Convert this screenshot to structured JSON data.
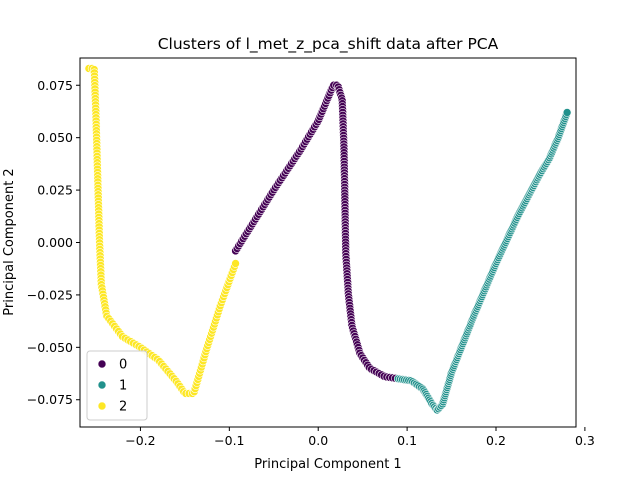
{
  "chart_data": {
    "type": "scatter",
    "title": "Clusters of l_met_z_pca_shift data after PCA",
    "xlabel": "Principal Component 1",
    "ylabel": "Principal Component 2",
    "xlim": [
      -0.268,
      0.29
    ],
    "ylim": [
      -0.088,
      0.088
    ],
    "xticks": [
      -0.2,
      -0.1,
      0.0,
      0.1,
      0.2,
      0.3
    ],
    "xtick_labels": [
      "−0.2",
      "−0.1",
      "0.0",
      "0.1",
      "0.2",
      "0.3"
    ],
    "yticks": [
      -0.075,
      -0.05,
      -0.025,
      0.0,
      0.025,
      0.05,
      0.075
    ],
    "ytick_labels": [
      "−0.075",
      "−0.050",
      "−0.025",
      "0.000",
      "0.025",
      "0.050",
      "0.075"
    ],
    "grid": false,
    "legend_position": "lower-left",
    "marker_edge_color": "#ffffff",
    "series": [
      {
        "name": "0",
        "color": "#440154",
        "path": [
          [
            -0.093,
            -0.004
          ],
          [
            -0.05,
            0.025
          ],
          [
            -0.02,
            0.044
          ],
          [
            0.0,
            0.058
          ],
          [
            0.012,
            0.07
          ],
          [
            0.017,
            0.075
          ],
          [
            0.022,
            0.075
          ],
          [
            0.027,
            0.068
          ],
          [
            0.029,
            0.045
          ],
          [
            0.03,
            0.02
          ],
          [
            0.031,
            -0.005
          ],
          [
            0.034,
            -0.025
          ],
          [
            0.038,
            -0.04
          ],
          [
            0.047,
            -0.053
          ],
          [
            0.058,
            -0.06
          ],
          [
            0.075,
            -0.064
          ],
          [
            0.09,
            -0.065
          ]
        ],
        "count": 180
      },
      {
        "name": "1",
        "color": "#21918c",
        "path": [
          [
            0.09,
            -0.065
          ],
          [
            0.105,
            -0.066
          ],
          [
            0.118,
            -0.07
          ],
          [
            0.128,
            -0.077
          ],
          [
            0.134,
            -0.08
          ],
          [
            0.14,
            -0.077
          ],
          [
            0.15,
            -0.062
          ],
          [
            0.175,
            -0.035
          ],
          [
            0.2,
            -0.01
          ],
          [
            0.225,
            0.013
          ],
          [
            0.25,
            0.033
          ],
          [
            0.26,
            0.04
          ],
          [
            0.27,
            0.05
          ],
          [
            0.28,
            0.062
          ]
        ],
        "count": 180
      },
      {
        "name": "2",
        "color": "#fde725",
        "path": [
          [
            -0.258,
            0.083
          ],
          [
            -0.252,
            0.083
          ],
          [
            -0.25,
            0.06
          ],
          [
            -0.248,
            0.03
          ],
          [
            -0.246,
            0.0
          ],
          [
            -0.244,
            -0.02
          ],
          [
            -0.238,
            -0.035
          ],
          [
            -0.22,
            -0.045
          ],
          [
            -0.2,
            -0.05
          ],
          [
            -0.18,
            -0.056
          ],
          [
            -0.16,
            -0.066
          ],
          [
            -0.15,
            -0.072
          ],
          [
            -0.14,
            -0.072
          ],
          [
            -0.125,
            -0.05
          ],
          [
            -0.11,
            -0.03
          ],
          [
            -0.093,
            -0.01
          ]
        ],
        "count": 160
      }
    ]
  }
}
